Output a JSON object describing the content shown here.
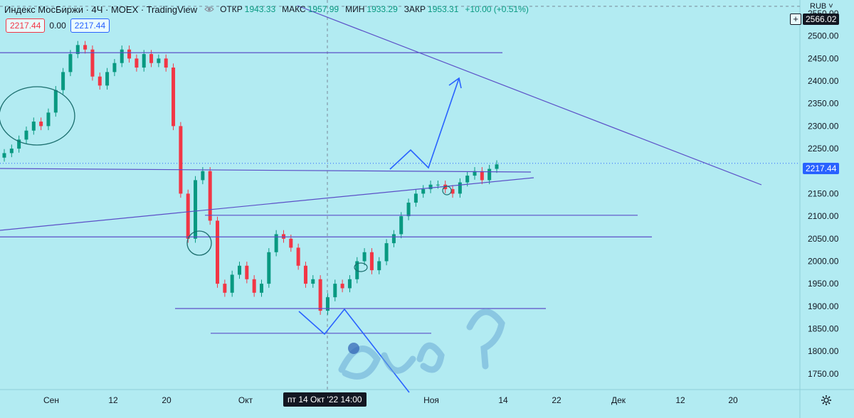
{
  "header": {
    "symbol": "Индекс МосБиржи · 4Ч · MOEX · TradingView",
    "open_label": "ОТКР",
    "open": "1943.33",
    "high_label": "МАКС",
    "high": "1957.99",
    "low_label": "МИН",
    "low": "1933.29",
    "close_label": "ЗАКР",
    "close": "1953.31",
    "change": "+10.00 (+0.51%)"
  },
  "price_boxes": {
    "sell": "2217.44",
    "spread": "0.00",
    "buy": "2217.44"
  },
  "axis": {
    "currency": "RUB",
    "top_tag": "2566.02",
    "last_tag": "2217.44"
  },
  "crosshair_date": "пт 14 Окт '22   14:00",
  "colors": {
    "background": "#b2ebf2",
    "up": "#089981",
    "down": "#f23645",
    "drawing": "#5b4fc7",
    "arrow": "#2962ff"
  },
  "icons": [
    "eye-icon",
    "plus-icon",
    "gear-icon",
    "chevron-down-icon"
  ],
  "chart_data": {
    "type": "candlestick",
    "symbol": "Индекс МосБиржи",
    "interval": "4Ч",
    "x_ticks": [
      "Сен",
      "12",
      "20",
      "Окт",
      "Ноя",
      "14",
      "22",
      "Дек",
      "12",
      "20"
    ],
    "y_ticks": [
      1750,
      1800,
      1850,
      1900,
      1950,
      2000,
      2050,
      2100,
      2150,
      2200,
      2250,
      2300,
      2350,
      2400,
      2450,
      2500,
      2550
    ],
    "ylim": [
      1715,
      2580
    ],
    "last_price": 2217.44,
    "crosshair_price_level": 2566.02,
    "grid": false,
    "closes_approx": [
      2240,
      2250,
      2270,
      2290,
      2310,
      2300,
      2330,
      2380,
      2420,
      2460,
      2480,
      2470,
      2410,
      2390,
      2420,
      2440,
      2470,
      2450,
      2430,
      2460,
      2440,
      2450,
      2430,
      2300,
      2150,
      2050,
      2180,
      2200,
      2090,
      1950,
      1930,
      1970,
      1990,
      1960,
      1930,
      1950,
      2020,
      2060,
      2050,
      2030,
      1990,
      1950,
      1960,
      1890,
      1920,
      1950,
      1940,
      1960,
      2000,
      2020,
      1980,
      2000,
      2040,
      2060,
      2100,
      2130,
      2150,
      2160,
      2170,
      2170,
      2160,
      2150,
      2175,
      2190,
      2200,
      2180,
      2205,
      2215
    ],
    "drawings": {
      "horizontal_levels_approx": [
        2463,
        2102,
        2054,
        1895,
        1840
      ],
      "trend_lines": "sloping support and descending resistance (visual only)"
    }
  }
}
